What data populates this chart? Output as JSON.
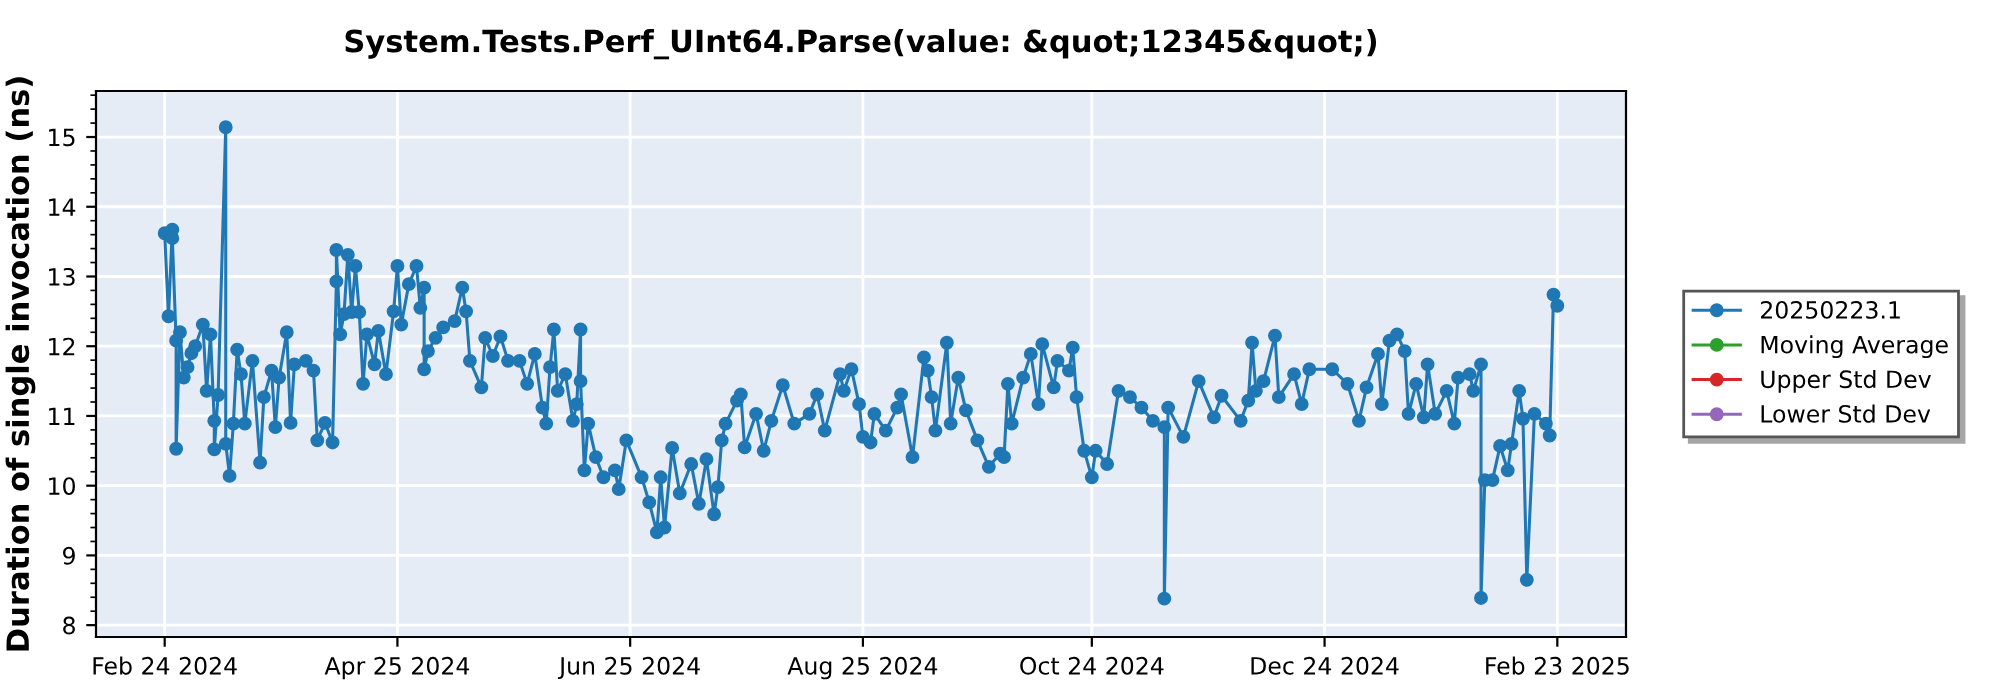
{
  "chart_data": {
    "type": "line",
    "title": "System.Tests.Perf_UInt64.Parse(value: &quot;12345&quot;)",
    "ylabel": "Duration of single invocation (ns)",
    "xlim": [
      "2024-02-06",
      "2025-03-13"
    ],
    "xticks": [
      {
        "value": "2024-02-24",
        "label": "Feb 24 2024"
      },
      {
        "value": "2024-04-25",
        "label": "Apr 25 2024"
      },
      {
        "value": "2024-06-25",
        "label": "Jun 25 2024"
      },
      {
        "value": "2024-08-25",
        "label": "Aug 25 2024"
      },
      {
        "value": "2024-10-24",
        "label": "Oct 24 2024"
      },
      {
        "value": "2024-12-24",
        "label": "Dec 24 2024"
      },
      {
        "value": "2025-02-23",
        "label": "Feb 23 2025"
      }
    ],
    "ylim": [
      7.83,
      15.66
    ],
    "yticks": [
      8,
      9,
      10,
      11,
      12,
      13,
      14,
      15
    ],
    "grid": true,
    "legend": "right",
    "marker": "circle",
    "line_style": "solid",
    "series": [
      {
        "name": "20250223.1",
        "color": "#1f77b4",
        "x": [
          "2024-02-24",
          "2024-02-25",
          "2024-02-26",
          "2024-02-26",
          "2024-02-27",
          "2024-02-27",
          "2024-02-28",
          "2024-02-29",
          "2024-03-01",
          "2024-03-02",
          "2024-03-03",
          "2024-03-05",
          "2024-03-06",
          "2024-03-07",
          "2024-03-08",
          "2024-03-08",
          "2024-03-09",
          "2024-03-11",
          "2024-03-11",
          "2024-03-12",
          "2024-03-13",
          "2024-03-14",
          "2024-03-15",
          "2024-03-16",
          "2024-03-18",
          "2024-03-20",
          "2024-03-21",
          "2024-03-23",
          "2024-03-24",
          "2024-03-25",
          "2024-03-27",
          "2024-03-28",
          "2024-03-29",
          "2024-04-01",
          "2024-04-03",
          "2024-04-04",
          "2024-04-06",
          "2024-04-08",
          "2024-04-09",
          "2024-04-09",
          "2024-04-10",
          "2024-04-11",
          "2024-04-12",
          "2024-04-13",
          "2024-04-14",
          "2024-04-15",
          "2024-04-16",
          "2024-04-17",
          "2024-04-19",
          "2024-04-20",
          "2024-04-22",
          "2024-04-24",
          "2024-04-25",
          "2024-04-26",
          "2024-04-28",
          "2024-04-30",
          "2024-05-01",
          "2024-05-02",
          "2024-05-02",
          "2024-05-03",
          "2024-05-05",
          "2024-05-07",
          "2024-05-10",
          "2024-05-12",
          "2024-05-13",
          "2024-05-14",
          "2024-05-17",
          "2024-05-18",
          "2024-05-20",
          "2024-05-22",
          "2024-05-24",
          "2024-05-27",
          "2024-05-29",
          "2024-05-31",
          "2024-06-02",
          "2024-06-03",
          "2024-06-04",
          "2024-06-05",
          "2024-06-06",
          "2024-06-08",
          "2024-06-10",
          "2024-06-11",
          "2024-06-12",
          "2024-06-12",
          "2024-06-13",
          "2024-06-14",
          "2024-06-16",
          "2024-06-18",
          "2024-06-21",
          "2024-06-22",
          "2024-06-24",
          "2024-06-28",
          "2024-06-30",
          "2024-07-02",
          "2024-07-03",
          "2024-07-04",
          "2024-07-06",
          "2024-07-08",
          "2024-07-11",
          "2024-07-13",
          "2024-07-15",
          "2024-07-17",
          "2024-07-18",
          "2024-07-19",
          "2024-07-20",
          "2024-07-23",
          "2024-07-24",
          "2024-07-25",
          "2024-07-28",
          "2024-07-30",
          "2024-08-01",
          "2024-08-04",
          "2024-08-07",
          "2024-08-11",
          "2024-08-13",
          "2024-08-15",
          "2024-08-19",
          "2024-08-20",
          "2024-08-22",
          "2024-08-24",
          "2024-08-25",
          "2024-08-27",
          "2024-08-28",
          "2024-08-31",
          "2024-09-03",
          "2024-09-04",
          "2024-09-07",
          "2024-09-10",
          "2024-09-11",
          "2024-09-12",
          "2024-09-13",
          "2024-09-16",
          "2024-09-17",
          "2024-09-19",
          "2024-09-21",
          "2024-09-24",
          "2024-09-27",
          "2024-09-30",
          "2024-10-01",
          "2024-10-02",
          "2024-10-03",
          "2024-10-06",
          "2024-10-08",
          "2024-10-10",
          "2024-10-11",
          "2024-10-14",
          "2024-10-15",
          "2024-10-18",
          "2024-10-19",
          "2024-10-20",
          "2024-10-22",
          "2024-10-24",
          "2024-10-25",
          "2024-10-28",
          "2024-10-31",
          "2024-11-03",
          "2024-11-06",
          "2024-11-09",
          "2024-11-12",
          "2024-11-12",
          "2024-11-13",
          "2024-11-17",
          "2024-11-21",
          "2024-11-25",
          "2024-11-27",
          "2024-12-02",
          "2024-12-04",
          "2024-12-05",
          "2024-12-06",
          "2024-12-08",
          "2024-12-11",
          "2024-12-12",
          "2024-12-16",
          "2024-12-18",
          "2024-12-20",
          "2024-12-26",
          "2024-12-30",
          "2025-01-02",
          "2025-01-04",
          "2025-01-07",
          "2025-01-08",
          "2025-01-10",
          "2025-01-12",
          "2025-01-14",
          "2025-01-15",
          "2025-01-17",
          "2025-01-19",
          "2025-01-20",
          "2025-01-22",
          "2025-01-25",
          "2025-01-27",
          "2025-01-28",
          "2025-01-31",
          "2025-02-01",
          "2025-02-03",
          "2025-02-03",
          "2025-02-04",
          "2025-02-06",
          "2025-02-08",
          "2025-02-10",
          "2025-02-11",
          "2025-02-13",
          "2025-02-14",
          "2025-02-15",
          "2025-02-17",
          "2025-02-20",
          "2025-02-21",
          "2025-02-22",
          "2025-02-23"
        ],
        "values": [
          13.62,
          12.43,
          13.67,
          13.55,
          12.08,
          10.53,
          12.2,
          11.55,
          11.7,
          11.9,
          12.0,
          12.31,
          11.36,
          12.17,
          10.93,
          10.52,
          11.3,
          15.14,
          10.6,
          10.14,
          10.89,
          11.95,
          11.6,
          10.89,
          11.79,
          10.33,
          11.27,
          11.65,
          10.84,
          11.55,
          12.2,
          10.9,
          11.74,
          11.79,
          11.65,
          10.65,
          10.9,
          10.62,
          12.93,
          13.38,
          12.17,
          12.46,
          13.31,
          12.49,
          13.15,
          12.49,
          11.46,
          12.17,
          11.74,
          12.22,
          11.6,
          12.5,
          13.15,
          12.31,
          12.89,
          13.15,
          12.55,
          12.84,
          11.67,
          11.93,
          12.12,
          12.27,
          12.36,
          12.84,
          12.5,
          11.79,
          11.41,
          12.12,
          11.86,
          12.14,
          11.79,
          11.79,
          11.46,
          11.89,
          11.12,
          10.89,
          11.7,
          12.24,
          11.36,
          11.6,
          10.93,
          11.17,
          12.24,
          11.5,
          10.22,
          10.89,
          10.41,
          10.12,
          10.22,
          9.95,
          10.65,
          10.12,
          9.76,
          9.33,
          10.12,
          9.4,
          10.54,
          9.89,
          10.31,
          9.74,
          10.38,
          9.59,
          9.98,
          10.65,
          10.89,
          11.22,
          11.31,
          10.55,
          11.03,
          10.5,
          10.93,
          11.44,
          10.89,
          11.03,
          11.31,
          10.79,
          11.6,
          11.36,
          11.67,
          11.17,
          10.7,
          10.62,
          11.03,
          10.79,
          11.12,
          11.31,
          10.41,
          11.84,
          11.65,
          11.27,
          10.79,
          12.05,
          10.89,
          11.55,
          11.08,
          10.65,
          10.27,
          10.46,
          10.41,
          11.46,
          10.89,
          11.55,
          11.89,
          11.17,
          12.03,
          11.41,
          11.79,
          11.65,
          11.98,
          11.27,
          10.5,
          10.12,
          10.5,
          10.31,
          11.36,
          11.27,
          11.12,
          10.93,
          10.84,
          8.38,
          11.12,
          10.7,
          11.5,
          10.98,
          11.29,
          10.93,
          11.22,
          12.05,
          11.36,
          11.5,
          12.15,
          11.27,
          11.6,
          11.17,
          11.67,
          11.67,
          11.46,
          10.93,
          11.41,
          11.89,
          11.17,
          12.08,
          12.17,
          11.93,
          11.03,
          11.46,
          10.98,
          11.74,
          11.03,
          11.36,
          10.89,
          11.55,
          11.6,
          11.36,
          11.74,
          8.39,
          10.08,
          10.08,
          10.57,
          10.22,
          10.6,
          11.36,
          10.96,
          8.65,
          11.03,
          10.89,
          10.72,
          12.74,
          12.58
        ]
      },
      {
        "name": "Moving Average",
        "color": "#2ca02c"
      },
      {
        "name": "Upper Std Dev",
        "color": "#d62728"
      },
      {
        "name": "Lower Std Dev",
        "color": "#9467bd"
      }
    ]
  }
}
